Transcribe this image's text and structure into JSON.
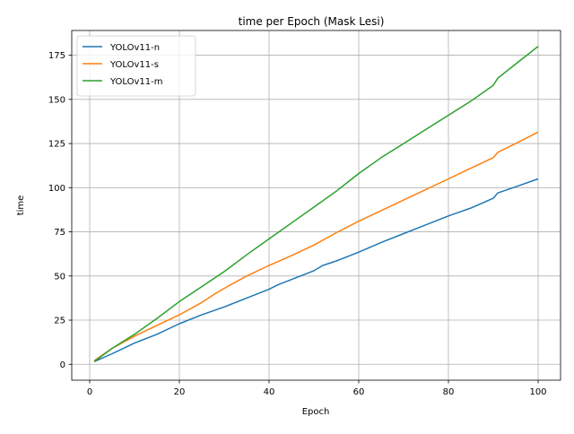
{
  "chart_data": {
    "type": "line",
    "title": "time per Epoch (Mask Lesi)",
    "xlabel": "Epoch",
    "ylabel": "time",
    "xlim": [
      -4,
      105
    ],
    "ylim": [
      -9,
      189
    ],
    "xticks": [
      0,
      20,
      40,
      60,
      80,
      100
    ],
    "yticks": [
      0,
      25,
      50,
      75,
      100,
      125,
      150,
      175
    ],
    "grid": true,
    "legend_position": "top-left",
    "series": [
      {
        "name": "YOLOv11-n",
        "color": "#1f77b4",
        "x": [
          1,
          5,
          10,
          15,
          20,
          25,
          30,
          35,
          40,
          42,
          45,
          50,
          52,
          55,
          60,
          65,
          70,
          75,
          80,
          85,
          90,
          91,
          95,
          100
        ],
        "y": [
          1.5,
          6,
          12,
          17,
          23,
          28,
          32.5,
          37.5,
          42.5,
          45,
          48,
          53,
          56,
          58.5,
          63.5,
          69,
          74,
          79,
          84,
          88.5,
          94,
          97,
          100.5,
          105
        ]
      },
      {
        "name": "YOLOv11-s",
        "color": "#ff7f0e",
        "x": [
          1,
          5,
          10,
          15,
          20,
          25,
          28,
          30,
          35,
          40,
          45,
          50,
          55,
          60,
          65,
          70,
          75,
          80,
          85,
          90,
          91,
          95,
          100
        ],
        "y": [
          2,
          9,
          16,
          22,
          28,
          35,
          40,
          43,
          50,
          56,
          61.5,
          67.5,
          74.5,
          81,
          87,
          93,
          99,
          105,
          111,
          117,
          120,
          125,
          131.5
        ]
      },
      {
        "name": "YOLOv11-m",
        "color": "#2ca02c",
        "x": [
          1,
          5,
          10,
          15,
          20,
          25,
          30,
          35,
          40,
          45,
          50,
          55,
          58,
          60,
          65,
          70,
          75,
          80,
          85,
          90,
          91,
          95,
          98,
          100
        ],
        "y": [
          1.5,
          9,
          17,
          26,
          35.5,
          44,
          52.5,
          62,
          71,
          80,
          89,
          98,
          104,
          108,
          117,
          125,
          133,
          141,
          149,
          158,
          162,
          170,
          176,
          180
        ]
      }
    ]
  }
}
